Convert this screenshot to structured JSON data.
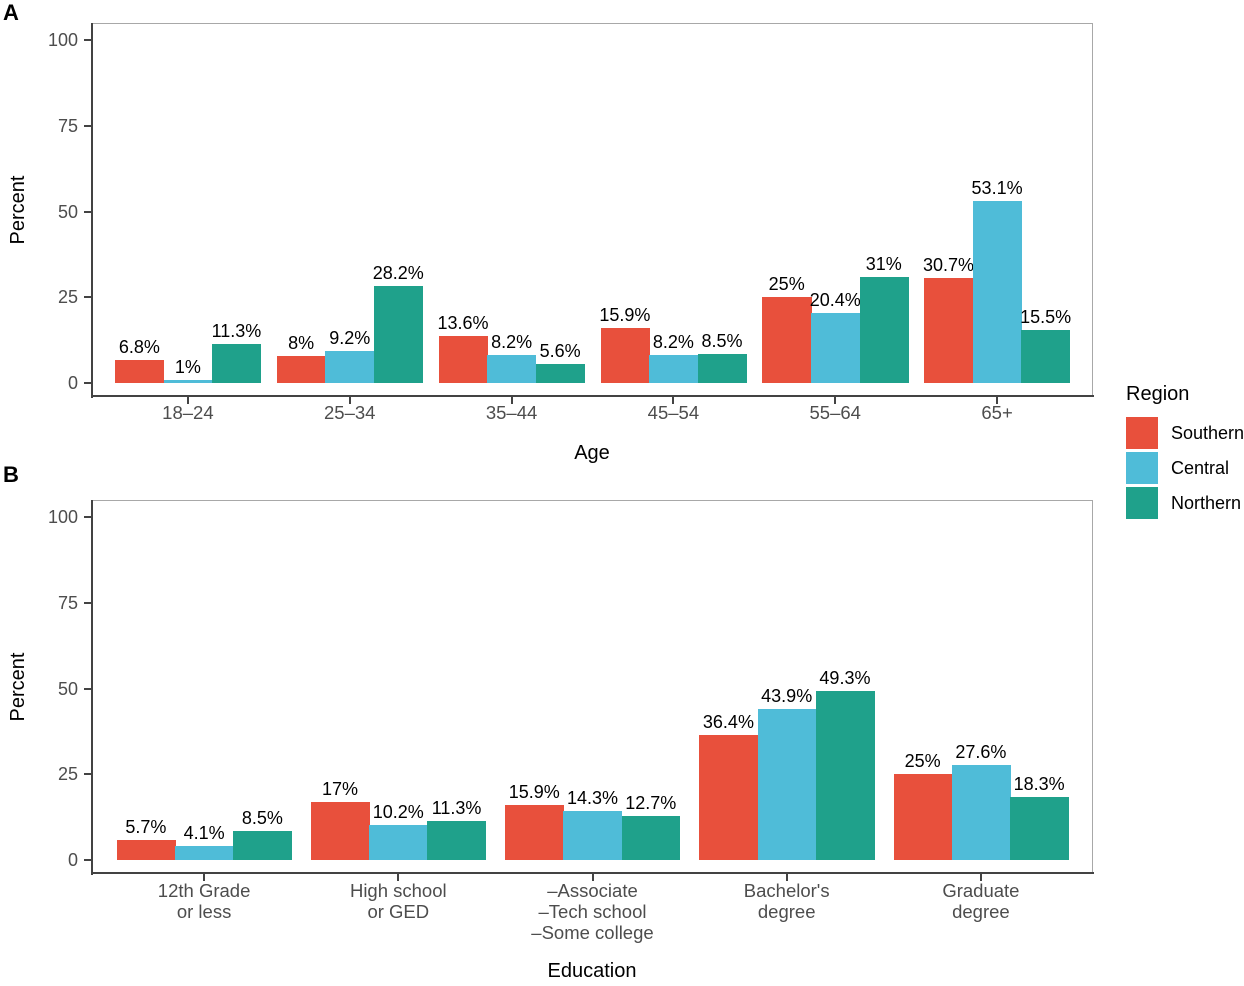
{
  "chart_data": [
    {
      "type": "bar",
      "panel_label": "A",
      "title": "",
      "xlabel": "Age",
      "ylabel": "Percent",
      "ylim": [
        0,
        100
      ],
      "yticks": [
        0,
        25,
        50,
        75,
        100
      ],
      "ytick_labels": [
        "0",
        "25",
        "50",
        "75",
        "100"
      ],
      "grid": false,
      "legend_position": "right",
      "categories": [
        "18–24",
        "25–34",
        "35–44",
        "45–54",
        "55–64",
        "65+"
      ],
      "category_lines": [
        [
          "18–24"
        ],
        [
          "25–34"
        ],
        [
          "35–44"
        ],
        [
          "45–54"
        ],
        [
          "55–64"
        ],
        [
          "65+"
        ]
      ],
      "series": [
        {
          "name": "Southern",
          "color": "#E8503C",
          "values": [
            6.8,
            8,
            13.6,
            15.9,
            25,
            30.7
          ],
          "labels": [
            "6.8%",
            "8%",
            "13.6%",
            "15.9%",
            "25%",
            "30.7%"
          ]
        },
        {
          "name": "Central",
          "color": "#4FBCD8",
          "values": [
            1,
            9.2,
            8.2,
            8.2,
            20.4,
            53.1
          ],
          "labels": [
            "1%",
            "9.2%",
            "8.2%",
            "8.2%",
            "20.4%",
            "53.1%"
          ]
        },
        {
          "name": "Northern",
          "color": "#1FA18B",
          "values": [
            11.3,
            28.2,
            5.6,
            8.5,
            31,
            15.5
          ],
          "labels": [
            "11.3%",
            "28.2%",
            "5.6%",
            "8.5%",
            "31%",
            "15.5%"
          ]
        }
      ]
    },
    {
      "type": "bar",
      "panel_label": "B",
      "title": "",
      "xlabel": "Education",
      "ylabel": "Percent",
      "ylim": [
        0,
        100
      ],
      "yticks": [
        0,
        25,
        50,
        75,
        100
      ],
      "ytick_labels": [
        "0",
        "25",
        "50",
        "75",
        "100"
      ],
      "grid": false,
      "legend_position": "right",
      "categories": [
        "12th Grade or less",
        "High school or GED",
        "–Associate –Tech school –Some college",
        "Bachelor's degree",
        "Graduate degree"
      ],
      "category_lines": [
        [
          "12th Grade",
          "or less"
        ],
        [
          "High school",
          "or GED"
        ],
        [
          "–Associate",
          "–Tech school",
          "–Some college"
        ],
        [
          "Bachelor's",
          "degree"
        ],
        [
          "Graduate",
          "degree"
        ]
      ],
      "series": [
        {
          "name": "Southern",
          "color": "#E8503C",
          "values": [
            5.7,
            17,
            15.9,
            36.4,
            25
          ],
          "labels": [
            "5.7%",
            "17%",
            "15.9%",
            "36.4%",
            "25%"
          ]
        },
        {
          "name": "Central",
          "color": "#4FBCD8",
          "values": [
            4.1,
            10.2,
            14.3,
            43.9,
            27.6
          ],
          "labels": [
            "4.1%",
            "10.2%",
            "14.3%",
            "43.9%",
            "27.6%"
          ]
        },
        {
          "name": "Northern",
          "color": "#1FA18B",
          "values": [
            8.5,
            11.3,
            12.7,
            49.3,
            18.3
          ],
          "labels": [
            "8.5%",
            "11.3%",
            "12.7%",
            "49.3%",
            "18.3%"
          ]
        }
      ]
    }
  ],
  "legend": {
    "title": "Region",
    "entries": [
      {
        "label": "Southern",
        "color": "#E8503C"
      },
      {
        "label": "Central",
        "color": "#4FBCD8"
      },
      {
        "label": "Northern",
        "color": "#1FA18B"
      }
    ]
  }
}
